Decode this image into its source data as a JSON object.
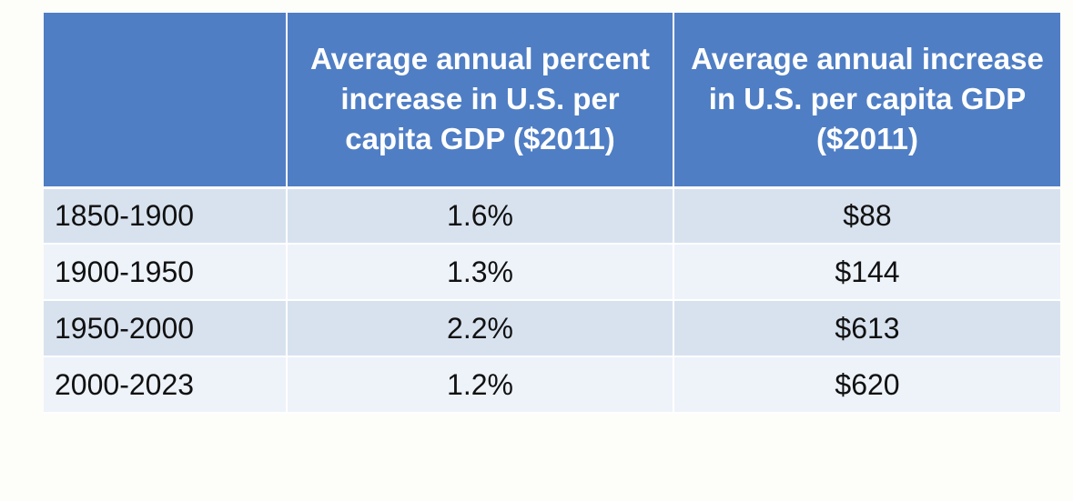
{
  "table": {
    "headers": [
      "",
      "Average annual percent increase in U.S. per capita GDP ($2011)",
      "Average annual increase in U.S. per capita GDP ($2011)"
    ],
    "rows": [
      {
        "period": "1850-1900",
        "percent": "1.6%",
        "dollars": "$88"
      },
      {
        "period": "1900-1950",
        "percent": "1.3%",
        "dollars": "$144"
      },
      {
        "period": "1950-2000",
        "percent": "2.2%",
        "dollars": "$613"
      },
      {
        "period": "2000-2023",
        "percent": "1.2%",
        "dollars": "$620"
      }
    ],
    "colors": {
      "header_bg": "#4f7ec4",
      "row_odd_bg": "#d8e2ef",
      "row_even_bg": "#eef3fa"
    }
  }
}
